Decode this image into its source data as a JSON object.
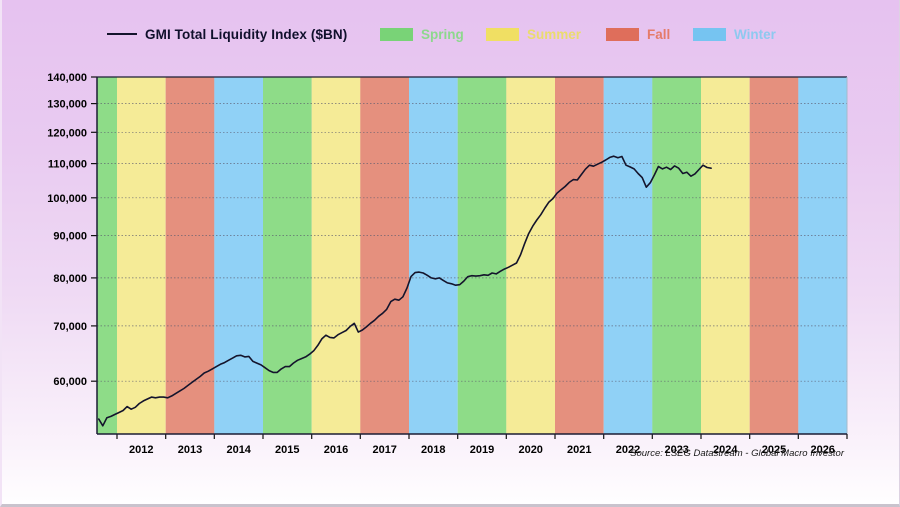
{
  "legend": {
    "series_label": "GMI Total Liquidity Index ($BN)",
    "items": [
      {
        "label": "Spring",
        "swatch_color": "#79d377",
        "text_color": "#8dd88d"
      },
      {
        "label": "Summer",
        "swatch_color": "#f0df63",
        "text_color": "#eadc6d"
      },
      {
        "label": "Fall",
        "swatch_color": "#df6e5b",
        "text_color": "#e57b69"
      },
      {
        "label": "Winter",
        "swatch_color": "#76c4f1",
        "text_color": "#8ec9ef"
      }
    ]
  },
  "source_note": "Source: LSEG Datastream - Global Macro Investor",
  "colors": {
    "line": "#14142c",
    "axis": "#1c1c34",
    "grid": "#5a5a6e",
    "background_top": "#e6c2f0",
    "background_bottom": "#fffeff"
  },
  "chart_data": {
    "type": "line",
    "title": "GMI Total Liquidity Index ($BN)",
    "y_scale": "log",
    "ylim": [
      51800,
      140000
    ],
    "yticks": [
      60000,
      70000,
      80000,
      90000,
      100000,
      110000,
      120000,
      130000,
      140000
    ],
    "ytick_labels": [
      "60,000",
      "70,000",
      "80,000",
      "90,000",
      "100,000",
      "110,000",
      "120,000",
      "130,000",
      "140,000"
    ],
    "grid": "horizontal-dotted",
    "x_start": 2011.589,
    "x_end": 2027.0,
    "first_tick_year": 2012,
    "last_tick_year": 2027,
    "xtick_labels": [
      "2012",
      "2013",
      "2014",
      "2015",
      "2016",
      "2017",
      "2018",
      "2019",
      "2020",
      "2021",
      "2022",
      "2023",
      "2024",
      "2025",
      "2026"
    ],
    "legend_position": "top",
    "season_colors": {
      "Spring": "#8edc88",
      "Summer": "#f5eb97",
      "Fall": "#e5907e",
      "Winter": "#90d1f6"
    },
    "bands": [
      {
        "year": 2011,
        "season": "Spring"
      },
      {
        "year": 2012,
        "season": "Summer"
      },
      {
        "year": 2013,
        "season": "Fall"
      },
      {
        "year": 2014,
        "season": "Winter"
      },
      {
        "year": 2015,
        "season": "Spring"
      },
      {
        "year": 2016,
        "season": "Summer"
      },
      {
        "year": 2017,
        "season": "Fall"
      },
      {
        "year": 2018,
        "season": "Winter"
      },
      {
        "year": 2019,
        "season": "Spring"
      },
      {
        "year": 2020,
        "season": "Summer"
      },
      {
        "year": 2021,
        "season": "Fall"
      },
      {
        "year": 2022,
        "season": "Winter"
      },
      {
        "year": 2023,
        "season": "Spring"
      },
      {
        "year": 2024,
        "season": "Summer"
      },
      {
        "year": 2025,
        "season": "Fall"
      },
      {
        "year": 2026,
        "season": "Winter"
      }
    ],
    "series": [
      {
        "name": "GMI Total Liquidity Index ($BN)",
        "points": [
          [
            2011.625,
            54000
          ],
          [
            2011.708,
            53000
          ],
          [
            2011.792,
            54200
          ],
          [
            2011.875,
            54400
          ],
          [
            2011.958,
            54700
          ],
          [
            2012.042,
            55000
          ],
          [
            2012.125,
            55300
          ],
          [
            2012.208,
            55900
          ],
          [
            2012.292,
            55500
          ],
          [
            2012.375,
            55800
          ],
          [
            2012.458,
            56400
          ],
          [
            2012.542,
            56800
          ],
          [
            2012.625,
            57100
          ],
          [
            2012.708,
            57400
          ],
          [
            2012.792,
            57300
          ],
          [
            2012.875,
            57400
          ],
          [
            2012.958,
            57400
          ],
          [
            2013.042,
            57300
          ],
          [
            2013.125,
            57600
          ],
          [
            2013.208,
            58000
          ],
          [
            2013.292,
            58400
          ],
          [
            2013.375,
            58800
          ],
          [
            2013.458,
            59300
          ],
          [
            2013.542,
            59800
          ],
          [
            2013.625,
            60300
          ],
          [
            2013.708,
            60800
          ],
          [
            2013.792,
            61400
          ],
          [
            2013.875,
            61700
          ],
          [
            2013.958,
            62100
          ],
          [
            2014.042,
            62500
          ],
          [
            2014.125,
            62900
          ],
          [
            2014.208,
            63200
          ],
          [
            2014.292,
            63600
          ],
          [
            2014.375,
            64000
          ],
          [
            2014.458,
            64400
          ],
          [
            2014.542,
            64500
          ],
          [
            2014.625,
            64200
          ],
          [
            2014.708,
            64300
          ],
          [
            2014.792,
            63400
          ],
          [
            2014.875,
            63100
          ],
          [
            2014.958,
            62800
          ],
          [
            2015.042,
            62300
          ],
          [
            2015.125,
            61800
          ],
          [
            2015.208,
            61500
          ],
          [
            2015.292,
            61500
          ],
          [
            2015.375,
            62100
          ],
          [
            2015.458,
            62500
          ],
          [
            2015.542,
            62500
          ],
          [
            2015.625,
            63100
          ],
          [
            2015.708,
            63600
          ],
          [
            2015.792,
            63900
          ],
          [
            2015.875,
            64200
          ],
          [
            2015.958,
            64700
          ],
          [
            2016.042,
            65300
          ],
          [
            2016.125,
            66300
          ],
          [
            2016.208,
            67500
          ],
          [
            2016.292,
            68200
          ],
          [
            2016.375,
            67800
          ],
          [
            2016.458,
            67700
          ],
          [
            2016.542,
            68300
          ],
          [
            2016.625,
            68700
          ],
          [
            2016.708,
            69100
          ],
          [
            2016.792,
            69900
          ],
          [
            2016.875,
            70500
          ],
          [
            2016.958,
            68800
          ],
          [
            2017.042,
            69200
          ],
          [
            2017.125,
            69800
          ],
          [
            2017.208,
            70500
          ],
          [
            2017.292,
            71100
          ],
          [
            2017.375,
            71900
          ],
          [
            2017.458,
            72500
          ],
          [
            2017.542,
            73300
          ],
          [
            2017.625,
            74900
          ],
          [
            2017.708,
            75400
          ],
          [
            2017.792,
            75200
          ],
          [
            2017.875,
            75900
          ],
          [
            2017.958,
            77800
          ],
          [
            2018.042,
            80300
          ],
          [
            2018.125,
            81200
          ],
          [
            2018.208,
            81300
          ],
          [
            2018.292,
            81100
          ],
          [
            2018.375,
            80600
          ],
          [
            2018.458,
            80000
          ],
          [
            2018.542,
            79800
          ],
          [
            2018.625,
            80000
          ],
          [
            2018.708,
            79400
          ],
          [
            2018.792,
            78900
          ],
          [
            2018.875,
            78700
          ],
          [
            2018.958,
            78400
          ],
          [
            2019.042,
            78500
          ],
          [
            2019.125,
            79300
          ],
          [
            2019.208,
            80300
          ],
          [
            2019.292,
            80500
          ],
          [
            2019.375,
            80400
          ],
          [
            2019.458,
            80500
          ],
          [
            2019.542,
            80700
          ],
          [
            2019.625,
            80600
          ],
          [
            2019.708,
            81100
          ],
          [
            2019.792,
            80900
          ],
          [
            2019.875,
            81500
          ],
          [
            2019.958,
            82000
          ],
          [
            2020.042,
            82400
          ],
          [
            2020.125,
            82900
          ],
          [
            2020.208,
            83400
          ],
          [
            2020.292,
            85300
          ],
          [
            2020.375,
            88000
          ],
          [
            2020.458,
            90500
          ],
          [
            2020.542,
            92400
          ],
          [
            2020.625,
            94000
          ],
          [
            2020.708,
            95400
          ],
          [
            2020.792,
            97200
          ],
          [
            2020.875,
            98800
          ],
          [
            2020.958,
            99800
          ],
          [
            2021.042,
            101300
          ],
          [
            2021.125,
            102300
          ],
          [
            2021.208,
            103200
          ],
          [
            2021.292,
            104400
          ],
          [
            2021.375,
            105200
          ],
          [
            2021.458,
            105100
          ],
          [
            2021.542,
            106700
          ],
          [
            2021.625,
            108300
          ],
          [
            2021.708,
            109500
          ],
          [
            2021.792,
            109200
          ],
          [
            2021.875,
            109800
          ],
          [
            2021.958,
            110400
          ],
          [
            2022.042,
            111100
          ],
          [
            2022.125,
            111900
          ],
          [
            2022.208,
            112300
          ],
          [
            2022.292,
            111800
          ],
          [
            2022.375,
            112200
          ],
          [
            2022.458,
            109500
          ],
          [
            2022.542,
            109000
          ],
          [
            2022.625,
            108400
          ],
          [
            2022.708,
            107000
          ],
          [
            2022.792,
            105800
          ],
          [
            2022.875,
            103000
          ],
          [
            2022.958,
            104300
          ],
          [
            2023.042,
            106600
          ],
          [
            2023.125,
            109100
          ],
          [
            2023.208,
            108400
          ],
          [
            2023.292,
            108900
          ],
          [
            2023.375,
            108200
          ],
          [
            2023.458,
            109300
          ],
          [
            2023.542,
            108600
          ],
          [
            2023.625,
            107000
          ],
          [
            2023.708,
            107400
          ],
          [
            2023.792,
            106200
          ],
          [
            2023.875,
            106900
          ],
          [
            2023.958,
            108200
          ],
          [
            2024.042,
            109500
          ],
          [
            2024.125,
            108800
          ],
          [
            2024.208,
            108600
          ]
        ]
      }
    ]
  }
}
